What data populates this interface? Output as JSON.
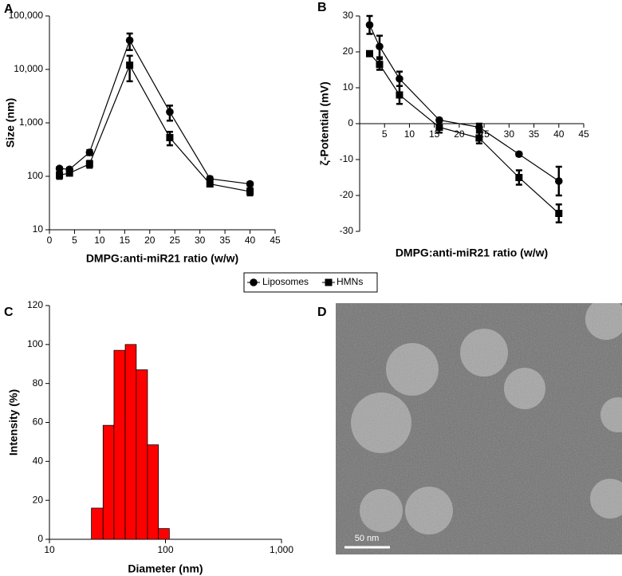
{
  "chart_data": [
    {
      "type": "line",
      "panel": "A",
      "x_label": "DMPG:anti-miR21 ratio (w/w)",
      "y_label": "Size (nm)",
      "x": [
        2,
        4,
        8,
        16,
        24,
        32,
        40
      ],
      "log_y": true,
      "xlim": [
        0,
        45
      ],
      "xticks": [
        0,
        5,
        10,
        15,
        20,
        25,
        30,
        35,
        40,
        45
      ],
      "ylim": [
        10,
        100000
      ],
      "yticks": [
        10,
        100,
        {
          "value": 1000,
          "label": "1,000"
        },
        {
          "value": 10000,
          "label": "10,000"
        },
        {
          "value": 100000,
          "label": "100,000"
        }
      ],
      "series": [
        {
          "name": "Liposomes",
          "marker": "circle",
          "color": "#000000",
          "values": [
            140,
            135,
            280,
            35000,
            1600,
            90,
            72
          ],
          "errors": [
            10,
            10,
            30,
            12000,
            500,
            8,
            5
          ]
        },
        {
          "name": "HMNs",
          "marker": "square",
          "color": "#000000",
          "values": [
            105,
            115,
            170,
            12000,
            530,
            72,
            52
          ],
          "errors": [
            15,
            12,
            25,
            6000,
            150,
            6,
            8
          ]
        }
      ]
    },
    {
      "type": "line",
      "panel": "B",
      "x_label": "DMPG:anti-miR21 ratio (w/w)",
      "y_label": "ζ-Potential (mV)",
      "x": [
        2,
        4,
        8,
        16,
        24,
        32,
        40
      ],
      "log_y": false,
      "xlim": [
        0,
        45
      ],
      "xticks": [
        5,
        10,
        15,
        20,
        25,
        30,
        35,
        40,
        45
      ],
      "ylim": [
        -30,
        30
      ],
      "yticks": [
        -30,
        -20,
        -10,
        0,
        10,
        20,
        30
      ],
      "series": [
        {
          "marker": "circle",
          "color": "#000000",
          "values": [
            27.5,
            21.5,
            12.5,
            1,
            -1,
            -8.5,
            -16
          ],
          "errors": [
            2.5,
            3,
            2,
            0.3,
            1,
            0.5,
            4
          ]
        },
        {
          "marker": "square",
          "color": "#000000",
          "values": [
            19.5,
            16.5,
            8,
            -1,
            -4,
            -15,
            -25
          ],
          "errors": [
            0.5,
            1.5,
            2.5,
            1.5,
            1.5,
            2,
            2.5
          ]
        }
      ]
    },
    {
      "type": "histogram",
      "panel": "C",
      "x_label": "Diameter (nm)",
      "y_label": "Intensity (%)",
      "log_x": true,
      "bins": [
        23,
        29,
        36,
        45,
        56,
        70,
        87,
        108
      ],
      "values": [
        16,
        58.5,
        97,
        100,
        87,
        48.5,
        5.5
      ],
      "color": "#ff0000",
      "xlim": [
        10,
        1000
      ],
      "xticks": [
        10,
        100,
        {
          "value": 1000,
          "label": "1,000"
        }
      ],
      "ylim": [
        0,
        120
      ],
      "yticks": [
        0,
        20,
        40,
        60,
        80,
        100,
        120
      ]
    }
  ],
  "image": {
    "panel": "D",
    "scale_bar": "50 nm"
  }
}
